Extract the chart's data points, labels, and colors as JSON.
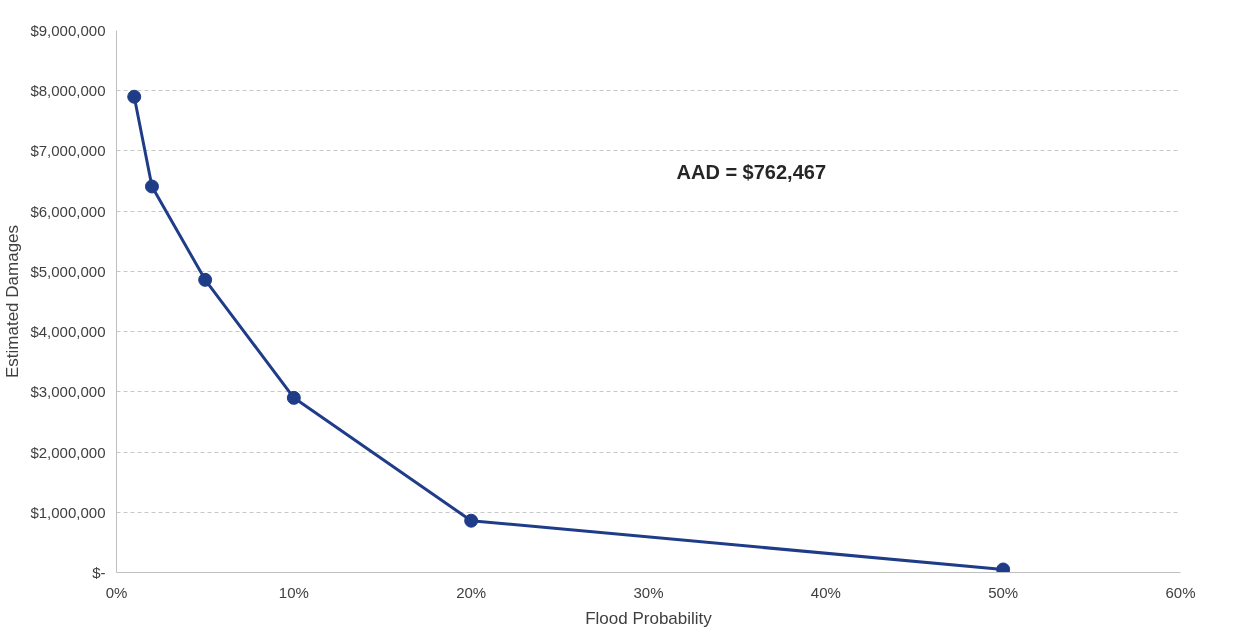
{
  "chart_data": {
    "type": "line",
    "xlabel": "Flood Probability",
    "ylabel": "Estimated Damages",
    "x": [
      1,
      2,
      5,
      10,
      20,
      50
    ],
    "series": [
      {
        "color": "#1f3c88",
        "values": [
          7900000,
          6410000,
          4860000,
          2900000,
          860000,
          50000
        ]
      }
    ],
    "xlim": [
      0,
      60
    ],
    "xticks": [
      {
        "value": 0,
        "label": "0%"
      },
      {
        "value": 10,
        "label": "10%"
      },
      {
        "value": 20,
        "label": "20%"
      },
      {
        "value": 30,
        "label": "30%"
      },
      {
        "value": 40,
        "label": "40%"
      },
      {
        "value": 50,
        "label": "50%"
      },
      {
        "value": 60,
        "label": "60%"
      }
    ],
    "ylim": [
      0,
      9000000
    ],
    "yticks": [
      {
        "value": 0,
        "label": "$-"
      },
      {
        "value": 1000000,
        "label": "$1,000,000"
      },
      {
        "value": 2000000,
        "label": "$2,000,000"
      },
      {
        "value": 3000000,
        "label": "$3,000,000"
      },
      {
        "value": 4000000,
        "label": "$4,000,000"
      },
      {
        "value": 5000000,
        "label": "$5,000,000"
      },
      {
        "value": 6000000,
        "label": "$6,000,000"
      },
      {
        "value": 7000000,
        "label": "$7,000,000"
      },
      {
        "value": 8000000,
        "label": "$8,000,000"
      },
      {
        "value": 9000000,
        "label": "$9,000,000"
      }
    ],
    "grid": "y",
    "marker": "circle",
    "line_style": "solid",
    "annotations": [
      "AAD = $762,467"
    ]
  }
}
